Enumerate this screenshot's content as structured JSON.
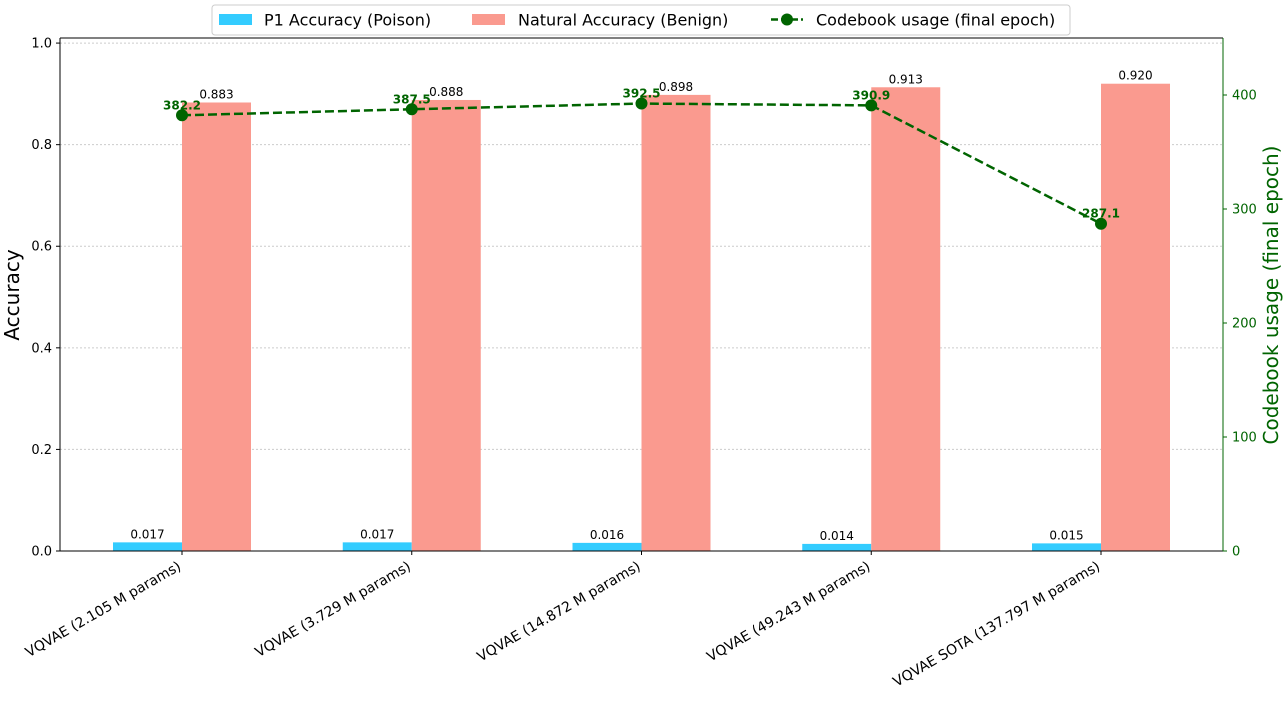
{
  "chart_data": {
    "type": "bar",
    "categories": [
      "VQVAE (2.105 M params)",
      "VQVAE (3.729 M params)",
      "VQVAE (14.872 M params)",
      "VQVAE (49.243 M params)",
      "VQVAE SOTA (137.797 M params)"
    ],
    "series": [
      {
        "name": "P1 Accuracy (Poison)",
        "kind": "bar",
        "axis": "left",
        "color": "#33ccff",
        "values": [
          0.017,
          0.017,
          0.016,
          0.014,
          0.015
        ],
        "labels": [
          "0.017",
          "0.017",
          "0.016",
          "0.014",
          "0.015"
        ]
      },
      {
        "name": "Natural Accuracy (Benign)",
        "kind": "bar",
        "axis": "left",
        "color": "#fa9a8f",
        "values": [
          0.883,
          0.888,
          0.898,
          0.913,
          0.92
        ],
        "labels": [
          "0.883",
          "0.888",
          "0.898",
          "0.913",
          "0.920"
        ]
      },
      {
        "name": "Codebook usage (final epoch)",
        "kind": "line",
        "axis": "right",
        "color": "#006400",
        "values": [
          382.2,
          387.5,
          392.5,
          390.9,
          287.1
        ],
        "labels": [
          "382.2",
          "387.5",
          "392.5",
          "390.9",
          "287.1"
        ]
      }
    ],
    "ylabel": "Accuracy",
    "ylabel_right": "Codebook usage (final epoch)",
    "ylim": [
      0,
      1.01
    ],
    "ylim_right": [
      0,
      450
    ],
    "yticks": [
      "0.0",
      "0.2",
      "0.4",
      "0.6",
      "0.8",
      "1.0"
    ],
    "yticks_right": [
      "0",
      "100",
      "200",
      "300",
      "400"
    ],
    "ytick_values": [
      0,
      0.2,
      0.4,
      0.6,
      0.8,
      1.0
    ],
    "ytick_values_right": [
      0,
      100,
      200,
      300,
      400
    ],
    "grid": "horizontal dotted",
    "legend_position": "top-center"
  }
}
